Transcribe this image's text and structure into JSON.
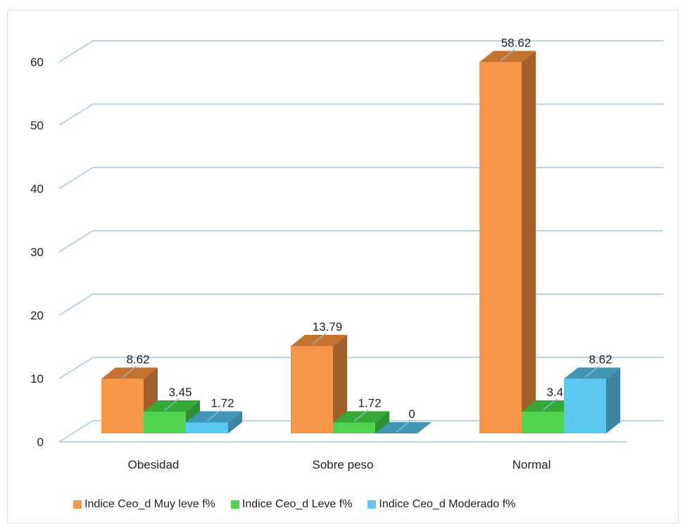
{
  "chart_data": {
    "type": "bar",
    "categories": [
      "Obesidad",
      "Sobre peso",
      "Normal"
    ],
    "series": [
      {
        "name": "Indice Ceo_d Muy leve f%",
        "values": [
          8.62,
          13.79,
          58.62
        ],
        "color": "#f79646",
        "side_color": "#a0612c",
        "top_color": "#c4732f"
      },
      {
        "name": "Indice Ceo_d Leve f%",
        "values": [
          3.45,
          1.72,
          3.45
        ],
        "color": "#4fd44f",
        "side_color": "#2e8f2e",
        "top_color": "#36a836"
      },
      {
        "name": "Indice Ceo_d Moderado f%",
        "values": [
          1.72,
          0,
          8.62
        ],
        "color": "#5bc8f2",
        "side_color": "#3a86a3",
        "top_color": "#4196b5"
      }
    ],
    "data_labels": [
      [
        "8.62",
        "13.79",
        "58.62"
      ],
      [
        "3.45",
        "1.72",
        "3.45"
      ],
      [
        "1.72",
        "0",
        "8.62"
      ]
    ],
    "y_ticks": [
      "0",
      "10",
      "20",
      "30",
      "40",
      "50",
      "60"
    ],
    "ylim": [
      0,
      60
    ],
    "grid": true,
    "legend_position": "bottom"
  }
}
